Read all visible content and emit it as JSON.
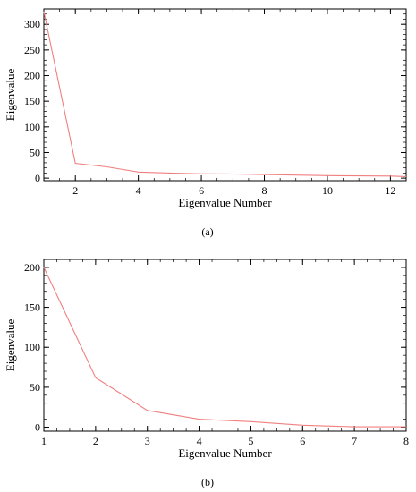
{
  "chart_data": [
    {
      "type": "line",
      "panel_label": "(a)",
      "xlabel": "Eigenvalue Number",
      "ylabel": "Eigenvalue",
      "xlim": [
        1,
        12.5
      ],
      "ylim": [
        -5,
        330
      ],
      "xticks": [
        2,
        4,
        6,
        8,
        10,
        12
      ],
      "yticks": [
        0,
        50,
        100,
        150,
        200,
        250,
        300
      ],
      "grid": false,
      "line_color": "#f08080",
      "series": [
        {
          "x": [
            1,
            2,
            3,
            4,
            5,
            6,
            7,
            8,
            9,
            10,
            11,
            12,
            12.5
          ],
          "y": [
            325,
            29,
            22,
            12,
            10,
            8.5,
            8,
            7,
            6,
            5,
            4.5,
            4,
            3
          ]
        }
      ]
    },
    {
      "type": "line",
      "panel_label": "(b)",
      "xlabel": "Eigenvalue Number",
      "ylabel": "Eigenvalue",
      "xlim": [
        1,
        8
      ],
      "ylim": [
        -5,
        210
      ],
      "xticks": [
        1,
        2,
        3,
        4,
        5,
        6,
        7,
        8
      ],
      "yticks": [
        0,
        50,
        100,
        150,
        200
      ],
      "grid": false,
      "line_color": "#f08080",
      "series": [
        {
          "x": [
            1,
            2,
            3,
            4,
            5,
            6,
            7,
            8
          ],
          "y": [
            200,
            62,
            21,
            10,
            7,
            2.5,
            0.5,
            0.5
          ]
        }
      ]
    }
  ]
}
